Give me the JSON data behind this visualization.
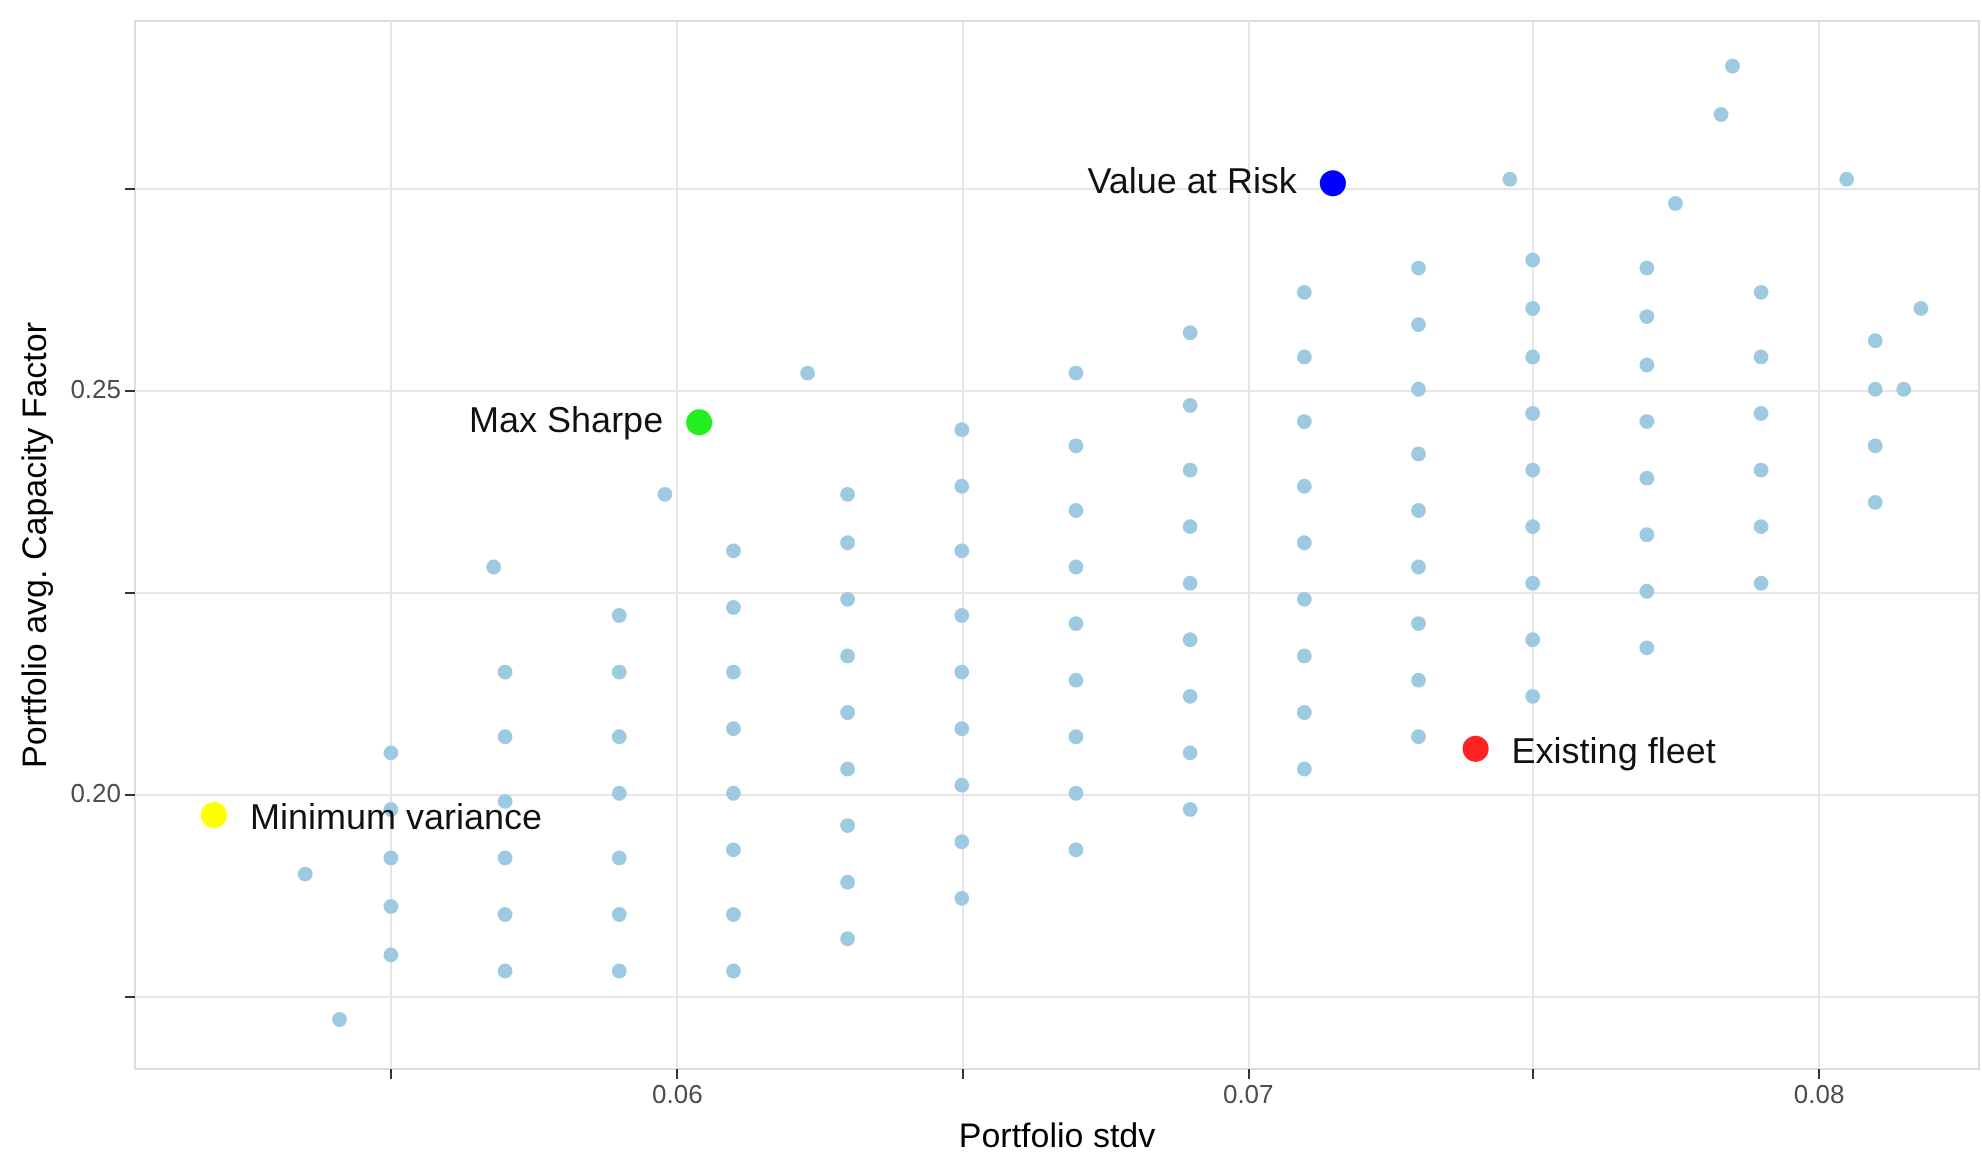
{
  "chart_data": {
    "type": "scatter",
    "xlabel": "Portfolio stdv",
    "ylabel": "Portfolio avg. Capacity Factor",
    "xlim": [
      0.0505,
      0.0828
    ],
    "ylim": [
      0.166,
      0.2957
    ],
    "xticks": [
      {
        "value": 0.055,
        "label": null
      },
      0.06,
      {
        "value": 0.065,
        "label": null
      },
      0.07,
      {
        "value": 0.075,
        "label": null
      },
      0.08
    ],
    "yticks": [
      {
        "value": 0.175,
        "label": null
      },
      {
        "value": 0.2,
        "label": "0.20"
      },
      {
        "value": 0.225,
        "label": null
      },
      0.25,
      {
        "value": 0.275,
        "label": null
      }
    ],
    "grid": true,
    "marker": "circle",
    "series": [
      {
        "color": "#9ecae1",
        "x": [
          0.055,
          0.055,
          0.055,
          0.055,
          0.055,
          0.057,
          0.057,
          0.057,
          0.057,
          0.057,
          0.057,
          0.059,
          0.059,
          0.059,
          0.059,
          0.059,
          0.059,
          0.059,
          0.061,
          0.061,
          0.061,
          0.061,
          0.061,
          0.061,
          0.061,
          0.061,
          0.063,
          0.063,
          0.063,
          0.063,
          0.063,
          0.063,
          0.063,
          0.063,
          0.063,
          0.065,
          0.065,
          0.065,
          0.065,
          0.065,
          0.065,
          0.065,
          0.065,
          0.065,
          0.067,
          0.067,
          0.067,
          0.067,
          0.067,
          0.067,
          0.067,
          0.067,
          0.067,
          0.069,
          0.069,
          0.069,
          0.069,
          0.069,
          0.069,
          0.069,
          0.069,
          0.069,
          0.071,
          0.071,
          0.071,
          0.071,
          0.071,
          0.071,
          0.071,
          0.071,
          0.071,
          0.073,
          0.073,
          0.073,
          0.073,
          0.073,
          0.073,
          0.073,
          0.073,
          0.073,
          0.075,
          0.075,
          0.075,
          0.075,
          0.075,
          0.075,
          0.075,
          0.075,
          0.075,
          0.077,
          0.077,
          0.077,
          0.077,
          0.077,
          0.077,
          0.077,
          0.077,
          0.079,
          0.079,
          0.079,
          0.079,
          0.079,
          0.079,
          0.081,
          0.081,
          0.081,
          0.081,
          0.0785,
          0.0783,
          0.0805,
          0.0746,
          0.0775,
          0.0568,
          0.0598,
          0.0623,
          0.0541,
          0.0535,
          0.0815,
          0.0818
        ],
        "values": [
          0.18,
          0.186,
          0.192,
          0.198,
          0.205,
          0.178,
          0.185,
          0.192,
          0.199,
          0.207,
          0.215,
          0.178,
          0.185,
          0.192,
          0.2,
          0.207,
          0.215,
          0.222,
          0.178,
          0.185,
          0.193,
          0.2,
          0.208,
          0.215,
          0.223,
          0.23,
          0.182,
          0.189,
          0.196,
          0.203,
          0.21,
          0.217,
          0.224,
          0.231,
          0.237,
          0.187,
          0.194,
          0.201,
          0.208,
          0.215,
          0.222,
          0.23,
          0.238,
          0.245,
          0.193,
          0.2,
          0.207,
          0.214,
          0.221,
          0.228,
          0.235,
          0.243,
          0.252,
          0.198,
          0.205,
          0.212,
          0.219,
          0.226,
          0.233,
          0.24,
          0.248,
          0.257,
          0.203,
          0.21,
          0.217,
          0.224,
          0.231,
          0.238,
          0.246,
          0.254,
          0.262,
          0.207,
          0.214,
          0.221,
          0.228,
          0.235,
          0.242,
          0.25,
          0.258,
          0.265,
          0.212,
          0.219,
          0.226,
          0.233,
          0.24,
          0.247,
          0.254,
          0.26,
          0.266,
          0.218,
          0.225,
          0.232,
          0.239,
          0.246,
          0.253,
          0.259,
          0.265,
          0.226,
          0.233,
          0.24,
          0.247,
          0.254,
          0.262,
          0.236,
          0.243,
          0.25,
          0.256,
          0.29,
          0.284,
          0.276,
          0.276,
          0.273,
          0.228,
          0.237,
          0.252,
          0.172,
          0.19,
          0.25,
          0.26
        ]
      },
      {
        "name": "Value at Risk",
        "color": "#0000ff",
        "x": [
          0.0715
        ],
        "values": [
          0.2755
        ]
      },
      {
        "name": "Max Sharpe",
        "color": "#22ee22",
        "x": [
          0.0604
        ],
        "values": [
          0.2459
        ]
      },
      {
        "name": "Minimum variance",
        "color": "#ffff00",
        "x": [
          0.0519
        ],
        "values": [
          0.1973
        ]
      },
      {
        "name": "Existing fleet",
        "color": "#ff2222",
        "x": [
          0.074
        ],
        "values": [
          0.2055
        ]
      }
    ]
  }
}
